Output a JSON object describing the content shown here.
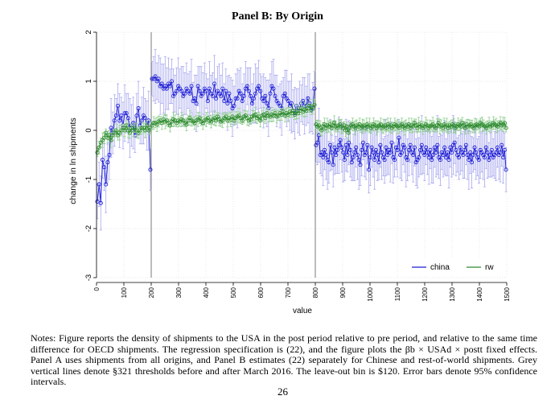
{
  "chart_data": {
    "type": "scatter",
    "title": "Panel B: By Origin",
    "xlabel": "value",
    "ylabel": "change in ln shipments",
    "xlim": [
      0,
      1500
    ],
    "ylim": [
      -3,
      2
    ],
    "x_ticks": [
      "0",
      "100",
      "200",
      "300",
      "400",
      "500",
      "600",
      "700",
      "800",
      "900",
      "1000",
      "1100",
      "1200",
      "1300",
      "1400",
      "1500"
    ],
    "y_ticks": [
      "-3",
      "-2",
      "-1",
      "0",
      "1",
      "2"
    ],
    "vlines": [
      200,
      800
    ],
    "legend": {
      "position": "bottom-right",
      "entries": [
        "china",
        "rw"
      ]
    },
    "series": [
      {
        "name": "china",
        "color": "#1f1fd6",
        "segments": [
          {
            "x0": 0,
            "x1": 200,
            "points": [
              -1.45,
              -1.1,
              -1.48,
              -0.6,
              -0.75,
              -1.1,
              -0.65,
              -0.5,
              0.05,
              -0.05,
              0.2,
              0.3,
              0.5,
              0.2,
              0.3,
              0.1,
              0.35,
              0.35,
              0.25,
              0.05,
              0.1,
              0.15,
              -0.1,
              0.3,
              0.45,
              0.1,
              0.2,
              0.3,
              0.25,
              0.1,
              0.2,
              -0.8
            ]
          },
          {
            "x0": 200,
            "x1": 800,
            "points": [
              1.05,
              1.05,
              1.1,
              1.0,
              1.05,
              0.9,
              0.95,
              0.85,
              0.9,
              0.85,
              0.95,
              0.9,
              1.0,
              0.7,
              0.75,
              0.8,
              0.9,
              0.85,
              0.8,
              0.7,
              0.75,
              0.85,
              0.8,
              0.75,
              0.9,
              0.6,
              0.65,
              0.55,
              0.9,
              0.8,
              0.7,
              0.75,
              0.85,
              0.8,
              0.6,
              0.85,
              0.75,
              0.7,
              0.95,
              0.65,
              0.8,
              0.75,
              0.7,
              0.85,
              0.6,
              0.8,
              0.55,
              0.75,
              0.6,
              0.45,
              0.5,
              0.65,
              0.65,
              0.8,
              0.75,
              0.6,
              0.7,
              0.85,
              0.9,
              0.8,
              0.7,
              0.55,
              0.65,
              0.75,
              0.85,
              0.9,
              0.8,
              0.65,
              0.6,
              0.7,
              0.55,
              0.45,
              0.75,
              0.9,
              0.85,
              0.7,
              0.6,
              0.55,
              0.5,
              0.45,
              0.7,
              0.75,
              0.65,
              0.6,
              0.5,
              0.55,
              0.4,
              0.35,
              0.5,
              0.4,
              0.45,
              0.55,
              0.6,
              0.5,
              0.5,
              0.65,
              0.55,
              0.4,
              0.45,
              0.85
            ]
          },
          {
            "x0": 800,
            "x1": 1500,
            "points": [
              -0.3,
              -0.25,
              -0.1,
              -0.5,
              -0.45,
              -0.55,
              -0.4,
              -0.5,
              -0.6,
              -0.65,
              -0.3,
              -0.45,
              -0.7,
              -0.35,
              -0.5,
              -0.4,
              -0.3,
              -0.2,
              -0.35,
              -0.45,
              -0.6,
              -0.3,
              -0.5,
              -0.25,
              -0.4,
              -0.65,
              -0.55,
              -0.45,
              -0.35,
              -0.5,
              -0.6,
              -0.7,
              -0.4,
              -0.25,
              -0.5,
              -0.45,
              -0.3,
              -0.8,
              -0.55,
              -0.35,
              -0.45,
              -0.6,
              -0.4,
              -0.5,
              -0.65,
              -0.3,
              -0.45,
              -0.55,
              -0.6,
              -0.35,
              -0.5,
              -0.4,
              -0.45,
              -0.25,
              -0.55,
              -0.6,
              -0.35,
              -0.4,
              -0.15,
              -0.5,
              -0.45,
              -0.3,
              -0.35,
              -0.55,
              -0.6,
              -0.4,
              -0.3,
              -0.45,
              -0.5,
              -0.35,
              -0.65,
              -0.6,
              -0.55,
              -0.4,
              -0.3,
              -0.45,
              -0.5,
              -0.35,
              -0.45,
              -0.55,
              -0.4,
              -0.6,
              -0.5,
              -0.35,
              -0.45,
              -0.3,
              -0.55,
              -0.6,
              -0.45,
              -0.5,
              -0.35,
              -0.55,
              -0.45,
              -0.6,
              -0.35,
              -0.45,
              -0.3,
              -0.25,
              -0.4,
              -0.5,
              -0.55,
              -0.35,
              -0.45,
              -0.5,
              -0.4,
              -0.3,
              -0.5,
              -0.6,
              -0.45,
              -0.65,
              -0.5,
              -0.35,
              -0.45,
              -0.55,
              -0.6,
              -0.4,
              -0.45,
              -0.5,
              -0.55,
              -0.35,
              -0.45,
              -0.6,
              -0.5,
              -0.4,
              -0.55,
              -0.5,
              -0.45,
              -0.35,
              -0.5,
              -0.45,
              -0.3,
              -0.55,
              -0.4,
              -0.8
            ]
          }
        ]
      },
      {
        "name": "rw",
        "color": "#2e8b2e",
        "segments": [
          {
            "x0": 0,
            "x1": 200,
            "points": [
              -0.45,
              -0.35,
              -0.25,
              -0.2,
              -0.15,
              -0.05,
              -0.15,
              -0.1,
              -0.2,
              -0.1,
              -0.05,
              0.0,
              -0.1,
              -0.05,
              0.0,
              0.05,
              0.0,
              0.1,
              0.0,
              -0.05,
              0.05,
              0.0,
              0.05,
              0.0,
              -0.05,
              0.0,
              0.05,
              0.05,
              0.0,
              0.1,
              0.0,
              0.05
            ]
          },
          {
            "x0": 200,
            "x1": 800,
            "points": [
              0.1,
              0.15,
              0.15,
              0.12,
              0.18,
              0.2,
              0.15,
              0.22,
              0.18,
              0.2,
              0.15,
              0.1,
              0.18,
              0.22,
              0.2,
              0.15,
              0.2,
              0.18,
              0.22,
              0.2,
              0.15,
              0.12,
              0.2,
              0.25,
              0.2,
              0.18,
              0.15,
              0.2,
              0.22,
              0.25,
              0.18,
              0.15,
              0.2,
              0.22,
              0.25,
              0.2,
              0.18,
              0.22,
              0.25,
              0.2,
              0.28,
              0.22,
              0.18,
              0.2,
              0.25,
              0.28,
              0.2,
              0.25,
              0.22,
              0.28,
              0.2,
              0.25,
              0.28,
              0.3,
              0.25,
              0.2,
              0.28,
              0.3,
              0.25,
              0.2,
              0.22,
              0.28,
              0.3,
              0.32,
              0.25,
              0.28,
              0.2,
              0.3,
              0.32,
              0.25,
              0.35,
              0.3,
              0.28,
              0.32,
              0.3,
              0.35,
              0.28,
              0.3,
              0.35,
              0.32,
              0.38,
              0.3,
              0.35,
              0.32,
              0.38,
              0.35,
              0.4,
              0.32,
              0.38,
              0.35,
              0.4,
              0.45,
              0.38,
              0.42,
              0.4,
              0.45,
              0.5,
              0.42,
              0.48,
              0.52
            ]
          },
          {
            "x0": 800,
            "x1": 1500,
            "points": [
              0.12,
              0.08,
              0.1,
              0.05,
              0.0,
              0.08,
              0.12,
              0.05,
              0.1,
              0.08,
              0.12,
              0.05,
              0.1,
              0.15,
              0.08,
              0.05,
              0.1,
              0.12,
              0.08,
              0.05,
              0.1,
              0.0,
              0.08,
              -0.05,
              0.05,
              0.1,
              0.12,
              0.08,
              0.05,
              0.1,
              0.08,
              0.12,
              0.05,
              0.08,
              0.1,
              0.05,
              0.12,
              0.08,
              0.1,
              0.05,
              0.08,
              0.12,
              0.1,
              0.05,
              0.08,
              0.1,
              0.12,
              0.05,
              0.08,
              0.1,
              0.05,
              0.12,
              0.08,
              0.1,
              0.05,
              0.08,
              0.12,
              0.1,
              0.08,
              0.05,
              0.1,
              0.12,
              0.08,
              0.05,
              0.1,
              0.08,
              0.12,
              0.05,
              0.1,
              0.08,
              0.15,
              0.1,
              0.05,
              0.12,
              0.08,
              0.1,
              0.05,
              0.08,
              0.12,
              0.1,
              0.05,
              0.08,
              0.1,
              0.12,
              0.08,
              0.05,
              0.1,
              0.15,
              0.08,
              0.1,
              0.05,
              0.12,
              0.08,
              0.1,
              0.05,
              0.1,
              0.08,
              0.12,
              0.1,
              0.05,
              0.08,
              0.12,
              0.1,
              0.08,
              0.15,
              0.1,
              0.05,
              0.12,
              0.08,
              0.1,
              0.12,
              0.08,
              0.05,
              0.1,
              0.12,
              0.1,
              0.08,
              0.15,
              0.12,
              0.1,
              0.08,
              0.05,
              0.1,
              0.12,
              0.08,
              0.1,
              0.15,
              0.12,
              0.1,
              0.08,
              0.12,
              0.15,
              0.1,
              0.12,
              0.15,
              0.05
            ]
          }
        ]
      }
    ]
  },
  "notes": {
    "text": "Notes: Figure reports the density of shipments to the USA in the post period relative to pre period, and relative to the same time difference for OECD shipments. The regression specification is (22), and the figure plots the βb × USAd × postt fixed effects. Panel A uses shipments from all origins, and Panel B estimates (22) separately for Chinese and rest-of-world shipments. Grey vertical lines denote §321 thresholds before and after March 2016. The leave-out bin is $120. Error bars denote 95% confidence intervals."
  },
  "page_number": "26"
}
